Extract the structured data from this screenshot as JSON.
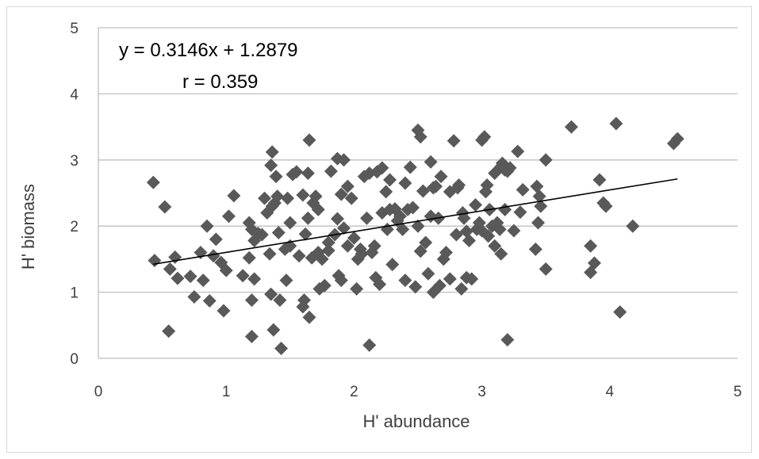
{
  "chart_data": {
    "type": "scatter",
    "xlabel": "H' abundance",
    "ylabel": "H' biomass",
    "xlim": [
      0,
      5
    ],
    "ylim": [
      0,
      5
    ],
    "xticks": [
      0,
      1,
      2,
      3,
      4,
      5
    ],
    "yticks": [
      0,
      1,
      2,
      3,
      4,
      5
    ],
    "grid": "horizontal",
    "legend": "none",
    "annotations": {
      "equation": "y = 0.3146x + 1.2879",
      "r": "r = 0.359"
    },
    "trendline": {
      "slope": 0.3146,
      "intercept": 1.2879,
      "x_range": [
        0.43,
        4.53
      ]
    },
    "marker_color": "#595959",
    "series": [
      {
        "points": [
          [
            0.43,
            2.66
          ],
          [
            0.44,
            1.48
          ],
          [
            0.52,
            2.29
          ],
          [
            0.55,
            0.41
          ],
          [
            0.56,
            1.35
          ],
          [
            0.6,
            1.53
          ],
          [
            0.62,
            1.21
          ],
          [
            0.72,
            1.24
          ],
          [
            0.75,
            0.93
          ],
          [
            0.8,
            1.6
          ],
          [
            0.82,
            1.18
          ],
          [
            0.85,
            2.0
          ],
          [
            0.87,
            0.87
          ],
          [
            0.9,
            1.55
          ],
          [
            0.92,
            1.8
          ],
          [
            0.96,
            1.45
          ],
          [
            0.98,
            0.72
          ],
          [
            1.0,
            1.33
          ],
          [
            1.02,
            2.15
          ],
          [
            1.06,
            2.46
          ],
          [
            1.13,
            1.25
          ],
          [
            1.18,
            1.52
          ],
          [
            1.18,
            2.05
          ],
          [
            1.2,
            1.95
          ],
          [
            1.2,
            0.33
          ],
          [
            1.2,
            0.88
          ],
          [
            1.22,
            1.78
          ],
          [
            1.22,
            1.2
          ],
          [
            1.25,
            1.89
          ],
          [
            1.28,
            1.87
          ],
          [
            1.3,
            2.42
          ],
          [
            1.32,
            2.2
          ],
          [
            1.34,
            1.58
          ],
          [
            1.35,
            0.97
          ],
          [
            1.35,
            2.92
          ],
          [
            1.36,
            3.12
          ],
          [
            1.36,
            2.3
          ],
          [
            1.37,
            0.43
          ],
          [
            1.38,
            2.35
          ],
          [
            1.39,
            2.75
          ],
          [
            1.4,
            2.45
          ],
          [
            1.41,
            1.9
          ],
          [
            1.42,
            0.88
          ],
          [
            1.43,
            0.15
          ],
          [
            1.46,
            1.65
          ],
          [
            1.47,
            1.18
          ],
          [
            1.48,
            2.42
          ],
          [
            1.5,
            2.05
          ],
          [
            1.5,
            1.7
          ],
          [
            1.52,
            2.78
          ],
          [
            1.55,
            2.82
          ],
          [
            1.57,
            1.55
          ],
          [
            1.6,
            0.78
          ],
          [
            1.6,
            2.47
          ],
          [
            1.61,
            0.88
          ],
          [
            1.62,
            1.88
          ],
          [
            1.64,
            2.12
          ],
          [
            1.64,
            2.8
          ],
          [
            1.65,
            3.3
          ],
          [
            1.65,
            0.62
          ],
          [
            1.67,
            1.52
          ],
          [
            1.68,
            2.35
          ],
          [
            1.7,
            2.45
          ],
          [
            1.72,
            1.6
          ],
          [
            1.72,
            2.25
          ],
          [
            1.73,
            1.05
          ],
          [
            1.75,
            1.5
          ],
          [
            1.77,
            1.1
          ],
          [
            1.8,
            1.75
          ],
          [
            1.8,
            1.63
          ],
          [
            1.82,
            2.83
          ],
          [
            1.85,
            1.87
          ],
          [
            1.87,
            3.02
          ],
          [
            1.87,
            2.11
          ],
          [
            1.88,
            1.25
          ],
          [
            1.9,
            2.48
          ],
          [
            1.9,
            1.18
          ],
          [
            1.92,
            1.97
          ],
          [
            1.92,
            3.0
          ],
          [
            1.95,
            2.6
          ],
          [
            1.95,
            1.7
          ],
          [
            1.98,
            2.42
          ],
          [
            2.0,
            1.82
          ],
          [
            2.02,
            1.05
          ],
          [
            2.03,
            1.5
          ],
          [
            2.05,
            1.65
          ],
          [
            2.06,
            1.58
          ],
          [
            2.08,
            2.75
          ],
          [
            2.1,
            2.12
          ],
          [
            2.12,
            2.8
          ],
          [
            2.12,
            0.2
          ],
          [
            2.14,
            1.6
          ],
          [
            2.16,
            1.7
          ],
          [
            2.17,
            1.22
          ],
          [
            2.18,
            2.82
          ],
          [
            2.2,
            1.12
          ],
          [
            2.22,
            2.2
          ],
          [
            2.22,
            2.88
          ],
          [
            2.25,
            2.52
          ],
          [
            2.26,
            1.95
          ],
          [
            2.28,
            2.7
          ],
          [
            2.28,
            2.25
          ],
          [
            2.3,
            1.42
          ],
          [
            2.32,
            2.26
          ],
          [
            2.34,
            2.08
          ],
          [
            2.36,
            2.15
          ],
          [
            2.38,
            1.95
          ],
          [
            2.4,
            2.65
          ],
          [
            2.4,
            1.18
          ],
          [
            2.42,
            2.25
          ],
          [
            2.44,
            2.89
          ],
          [
            2.46,
            2.28
          ],
          [
            2.48,
            1.08
          ],
          [
            2.5,
            2.0
          ],
          [
            2.5,
            3.45
          ],
          [
            2.52,
            3.35
          ],
          [
            2.52,
            1.62
          ],
          [
            2.54,
            2.53
          ],
          [
            2.56,
            1.75
          ],
          [
            2.58,
            1.28
          ],
          [
            2.6,
            2.97
          ],
          [
            2.6,
            2.15
          ],
          [
            2.62,
            1.0
          ],
          [
            2.62,
            2.58
          ],
          [
            2.64,
            2.6
          ],
          [
            2.66,
            2.12
          ],
          [
            2.67,
            1.1
          ],
          [
            2.68,
            2.75
          ],
          [
            2.7,
            1.5
          ],
          [
            2.72,
            1.6
          ],
          [
            2.75,
            1.2
          ],
          [
            2.75,
            2.52
          ],
          [
            2.78,
            3.29
          ],
          [
            2.8,
            1.87
          ],
          [
            2.81,
            2.58
          ],
          [
            2.82,
            2.62
          ],
          [
            2.84,
            1.05
          ],
          [
            2.85,
            2.2
          ],
          [
            2.86,
            2.12
          ],
          [
            2.88,
            1.22
          ],
          [
            2.88,
            1.92
          ],
          [
            2.9,
            1.78
          ],
          [
            2.92,
            1.2
          ],
          [
            2.95,
            2.32
          ],
          [
            2.96,
            1.95
          ],
          [
            2.98,
            2.05
          ],
          [
            3.0,
            1.93
          ],
          [
            3.0,
            3.3
          ],
          [
            3.02,
            3.35
          ],
          [
            3.03,
            2.52
          ],
          [
            3.04,
            2.62
          ],
          [
            3.05,
            1.85
          ],
          [
            3.06,
            2.25
          ],
          [
            3.08,
            2.0
          ],
          [
            3.1,
            1.7
          ],
          [
            3.1,
            2.8
          ],
          [
            3.12,
            2.05
          ],
          [
            3.14,
            1.95
          ],
          [
            3.15,
            1.58
          ],
          [
            3.15,
            2.9
          ],
          [
            3.16,
            2.95
          ],
          [
            3.18,
            2.85
          ],
          [
            3.18,
            2.25
          ],
          [
            3.2,
            0.28
          ],
          [
            3.2,
            2.83
          ],
          [
            3.22,
            2.88
          ],
          [
            3.25,
            1.93
          ],
          [
            3.28,
            3.13
          ],
          [
            3.3,
            2.21
          ],
          [
            3.32,
            2.55
          ],
          [
            3.42,
            1.65
          ],
          [
            3.43,
            2.6
          ],
          [
            3.44,
            2.05
          ],
          [
            3.45,
            2.45
          ],
          [
            3.46,
            2.3
          ],
          [
            3.5,
            3.0
          ],
          [
            3.5,
            1.35
          ],
          [
            3.7,
            3.5
          ],
          [
            3.85,
            1.7
          ],
          [
            3.85,
            1.3
          ],
          [
            3.88,
            1.44
          ],
          [
            3.92,
            2.7
          ],
          [
            3.95,
            2.35
          ],
          [
            3.97,
            2.3
          ],
          [
            4.05,
            3.55
          ],
          [
            4.08,
            0.7
          ],
          [
            4.18,
            2.0
          ],
          [
            4.5,
            3.25
          ],
          [
            4.53,
            3.32
          ]
        ]
      }
    ]
  }
}
